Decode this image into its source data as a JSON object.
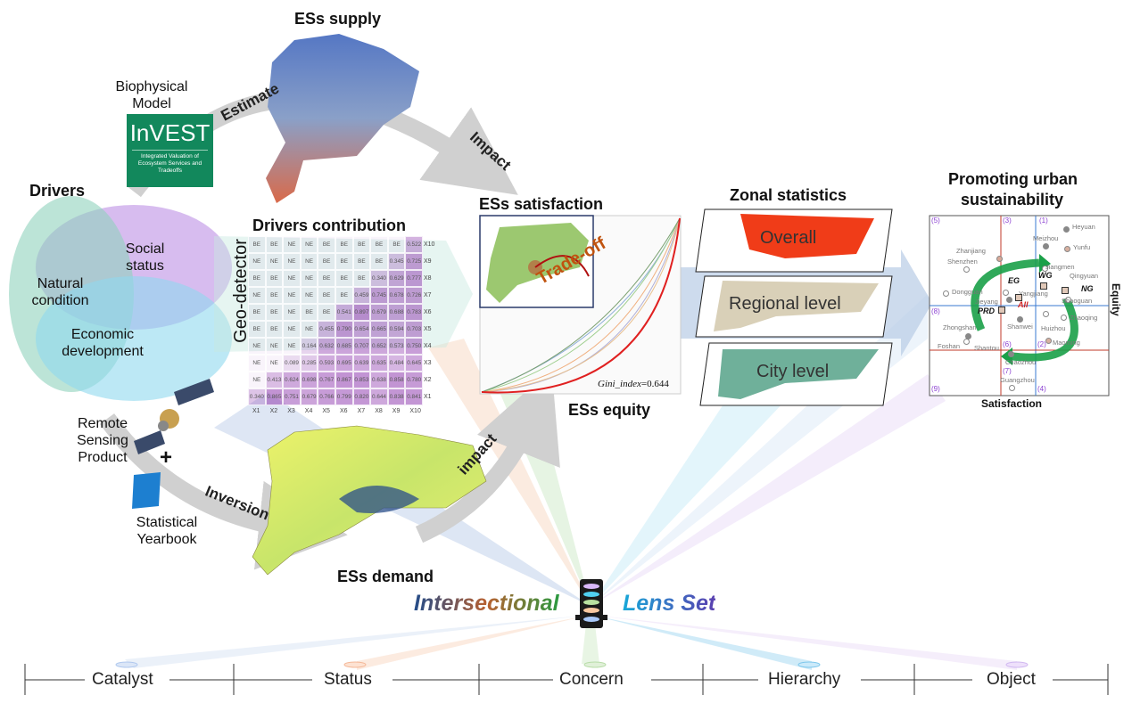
{
  "titles": {
    "supply": "ESs supply",
    "drivers": "Drivers",
    "drivers_contribution": "Drivers contribution",
    "satisfaction": "ESs satisfaction",
    "equity": "ESs equity",
    "zonal": "Zonal statistics",
    "promoting_1": "Promoting urban",
    "promoting_2": "sustainability",
    "demand": "ESs demand"
  },
  "arrows": {
    "estimate": "Estimate",
    "impact_top": "Impact",
    "impact_bottom": "impact",
    "inversion": "Inversion",
    "geo_detector": "Geo-detector"
  },
  "sources": {
    "bio_1": "Biophysical",
    "bio_2": "Model",
    "invest_name": "InVEST",
    "invest_sub": "Integrated Valuation of Ecosystem Services and Tradeoffs",
    "rs_1": "Remote",
    "rs_2": "Sensing",
    "rs_3": "Product",
    "plus": "+",
    "sy_1": "Statistical",
    "sy_2": "Yearbook"
  },
  "drivers": {
    "social_1": "Social",
    "social_2": "status",
    "natural_1": "Natural",
    "natural_2": "condition",
    "economic_1": "Economic",
    "economic_2": "development"
  },
  "matrix": {
    "row_labels": [
      "X10",
      "X9",
      "X8",
      "X7",
      "X6",
      "X5",
      "X4",
      "X3",
      "X2",
      "X1"
    ],
    "col_labels": [
      "X1",
      "X2",
      "X3",
      "X4",
      "X5",
      "X6",
      "X7",
      "X8",
      "X9",
      "X10"
    ],
    "rows": [
      [
        "BE",
        "BE",
        "NE",
        "NE",
        "BE",
        "BE",
        "BE",
        "BE",
        "BE",
        "0.522"
      ],
      [
        "NE",
        "NE",
        "NE",
        "NE",
        "BE",
        "BE",
        "BE",
        "BE",
        "0.345",
        "0.725"
      ],
      [
        "BE",
        "BE",
        "NE",
        "NE",
        "BE",
        "BE",
        "BE",
        "0.340",
        "0.629",
        "0.777"
      ],
      [
        "NE",
        "BE",
        "NE",
        "NE",
        "BE",
        "BE",
        "0.459",
        "0.745",
        "0.678",
        "0.726"
      ],
      [
        "BE",
        "BE",
        "NE",
        "BE",
        "BE",
        "0.541",
        "0.897",
        "0.679",
        "0.688",
        "0.783"
      ],
      [
        "BE",
        "BE",
        "NE",
        "NE",
        "0.455",
        "0.790",
        "0.654",
        "0.665",
        "0.594",
        "0.703"
      ],
      [
        "NE",
        "NE",
        "NE",
        "0.164",
        "0.632",
        "0.685",
        "0.707",
        "0.652",
        "0.573",
        "0.750"
      ],
      [
        "NE",
        "NE",
        "0.089",
        "0.285",
        "0.593",
        "0.695",
        "0.639",
        "0.635",
        "0.484",
        "0.645"
      ],
      [
        "NE",
        "0.413",
        "0.624",
        "0.698",
        "0.767",
        "0.867",
        "0.853",
        "0.638",
        "0.858",
        "0.780"
      ],
      [
        "0.340",
        "0.865",
        "0.751",
        "0.679",
        "0.766",
        "0.799",
        "0.820",
        "0.644",
        "0.838",
        "0.841"
      ]
    ]
  },
  "satisfaction_chart": {
    "tradeoff": "Trade-off",
    "gini_label": "Gini_index",
    "gini_value": "=0.644"
  },
  "zonal": {
    "overall": "Overall",
    "regional": "Regional level",
    "city": "City level"
  },
  "quadrant": {
    "x_label": "Satisfaction",
    "y_label": "Equity",
    "quadrants": [
      "(1)",
      "(2)",
      "(3)",
      "(4)",
      "(5)",
      "(6)",
      "(7)",
      "(8)",
      "(9)"
    ],
    "cities": [
      "Heyuan",
      "Meizhou",
      "Yunfu",
      "Zhanjiang",
      "Shenzhen",
      "Jiangmen",
      "Qingyuan",
      "Dongguan",
      "Yangjiang",
      "Jieyang",
      "Shaoguan",
      "Shanwei",
      "Huizhou",
      "Zhaoqing",
      "Zhongshan",
      "Foshan",
      "Shantou",
      "Maoming",
      "Chaozhou",
      "Guangzhou"
    ],
    "groups": [
      "EG",
      "WG",
      "NG",
      "PRD",
      "All"
    ]
  },
  "lens": {
    "word1": "Intersectional",
    "word2": "Lens Set"
  },
  "bottom_axis": [
    "Catalyst",
    "Status",
    "Concern",
    "Hierarchy",
    "Object"
  ],
  "colors": {
    "invest_green": "#12885c",
    "tradeoff": "#c0530f",
    "gini_red": "#e02020",
    "lens_blue": "#1a9ad0",
    "lens_purple": "#5a3fb0"
  }
}
